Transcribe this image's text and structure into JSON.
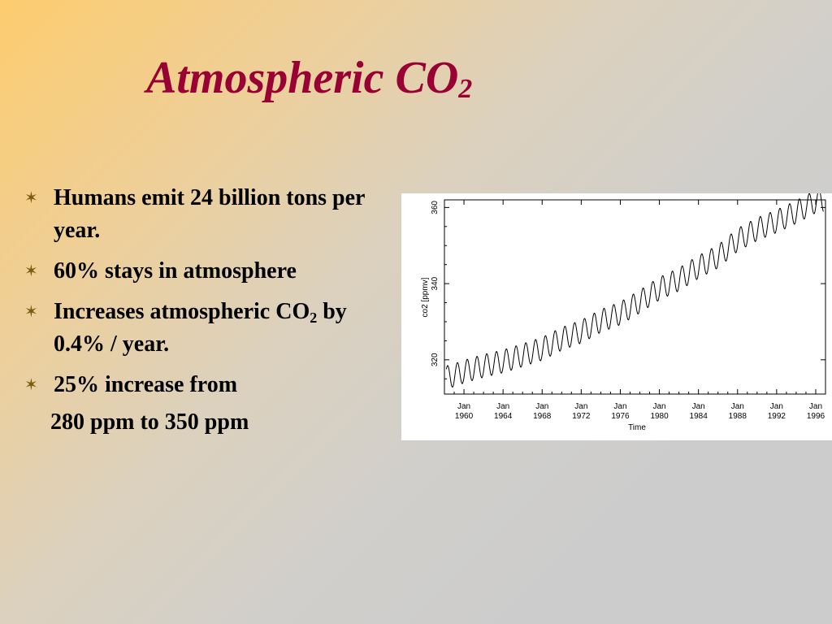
{
  "slide": {
    "title": "Atmospheric CO",
    "title_sub": "2",
    "bullet_icon": "star-bullet-icon",
    "bullets": [
      {
        "text": "Humans emit 24 billion tons per year."
      },
      {
        "text": "60% stays in atmosphere"
      },
      {
        "text": "Increases atmospheric CO",
        "sub": "2",
        "text_after": " by 0.4% / year."
      },
      {
        "text": "25% increase from"
      }
    ],
    "bullet_continuation": "280 ppm to 350 ppm"
  },
  "chart_data": {
    "type": "line",
    "title": "",
    "xlabel": "Time",
    "ylabel": "co2 [ppmv]",
    "xlim": [
      1958,
      1997
    ],
    "ylim": [
      311,
      362
    ],
    "x_ticks": [
      1960,
      1964,
      1968,
      1972,
      1976,
      1980,
      1984,
      1988,
      1992,
      1996
    ],
    "x_tick_month_label": "Jan",
    "x_tick_labels": [
      "1960",
      "1964",
      "1968",
      "1972",
      "1976",
      "1980",
      "1984",
      "1988",
      "1992",
      "1996"
    ],
    "y_ticks": [
      320,
      340,
      360
    ],
    "y_tick_labels": [
      "320",
      "340",
      "360"
    ],
    "grid": false,
    "legend": "none",
    "line_color": "#000000",
    "seasonal_amplitude": 3,
    "series": [
      {
        "annual_mean_x": [
          1958.5,
          1960,
          1962,
          1964,
          1966,
          1968,
          1970,
          1972,
          1974,
          1976,
          1978,
          1980,
          1982,
          1984,
          1986,
          1988,
          1990,
          1992,
          1994,
          1996,
          1996.5
        ],
        "annual_mean_y": [
          315.5,
          316.9,
          318.4,
          319.6,
          321.2,
          322.9,
          325.5,
          327.4,
          330.2,
          332.2,
          335.3,
          338.7,
          341.1,
          344.4,
          347.1,
          351.5,
          354.3,
          356.4,
          358.8,
          361.6,
          361.8
        ]
      }
    ]
  }
}
